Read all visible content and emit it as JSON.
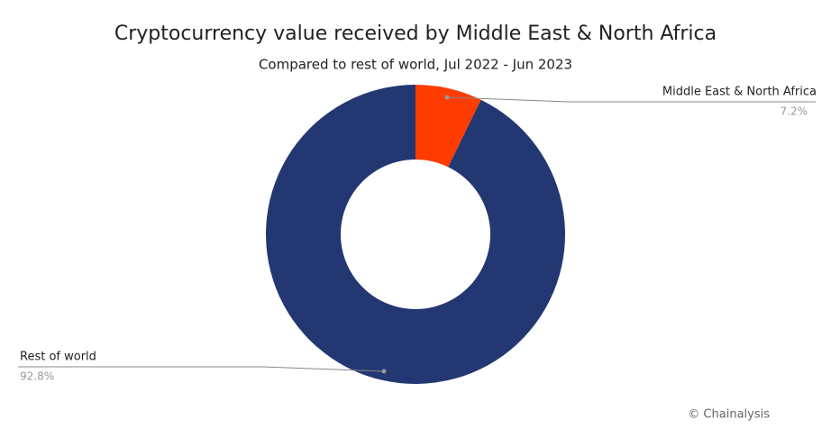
{
  "chart_data": {
    "type": "donut",
    "title": "Cryptocurrency value received by Middle East & North Africa",
    "subtitle": "Compared to rest of world, Jul 2022 - Jun 2023",
    "categories": [
      "Middle East & North Africa",
      "Rest of world"
    ],
    "values": [
      7.2,
      92.8
    ],
    "value_labels": [
      "7.2%",
      "92.8%"
    ],
    "colors": [
      "#fe3c00",
      "#233872"
    ],
    "source": "© Chainalysis"
  }
}
